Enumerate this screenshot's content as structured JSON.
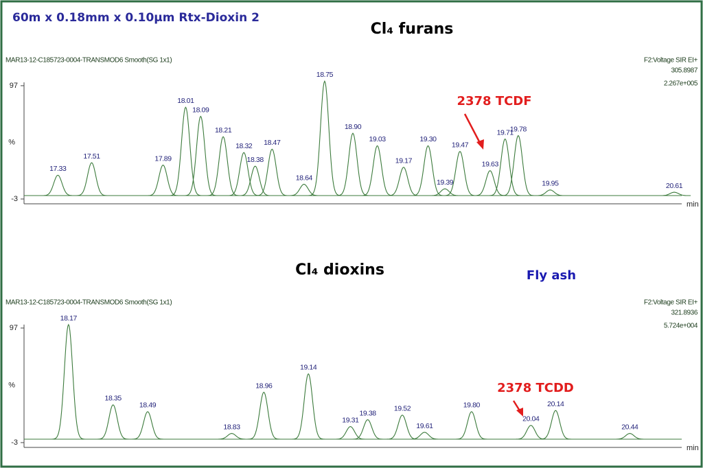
{
  "page_title": "60m x 0.18mm x 0.10µm Rtx-Dioxin 2",
  "chart_data": [
    {
      "type": "chromatogram",
      "title": "Cl₄ furans",
      "header_left": "MAR13-12-C185723-0004-TRANSMOD6 Smooth(SG 1x1)",
      "header_right": [
        "F2:Voltage SIR EI+",
        "305.8987",
        "2.267e+005"
      ],
      "ylabel": "%",
      "xlabel": "min",
      "x": [
        17.33,
        17.51,
        17.89,
        18.01,
        18.09,
        18.21,
        18.32,
        18.38,
        18.47,
        18.64,
        18.75,
        18.9,
        19.03,
        19.17,
        19.3,
        19.39,
        19.47,
        19.63,
        19.71,
        19.78,
        19.95,
        20.61
      ],
      "x_labels": [
        "17.33",
        "17.51",
        "17.89",
        "18.01",
        "18.09",
        "18.21",
        "18.32",
        "18.38",
        "18.47",
        "18.64",
        "18.75",
        "18.90",
        "19.03",
        "19.17",
        "19.30",
        "19.39",
        "19.47",
        "19.63",
        "19.71",
        "19.78",
        "19.95",
        "20.61"
      ],
      "values": [
        18,
        29,
        27,
        78,
        70,
        52,
        38,
        26,
        41,
        10,
        101,
        55,
        44,
        25,
        44,
        6,
        39,
        22,
        50,
        53,
        5,
        3
      ],
      "color": "#3b7a3b",
      "xlim": [
        17.15,
        20.65
      ],
      "ylim": [
        -3,
        103
      ],
      "yticks": [
        97,
        -3
      ],
      "annotations": [
        "2378 TCDF"
      ]
    },
    {
      "type": "chromatogram",
      "title": "Cl₄ dioxins",
      "header_left": "MAR13-12-C185723-0004-TRANSMOD6 Smooth(SG 1x1)",
      "header_right": [
        "F2:Voltage SIR EI+",
        "321.8936",
        "5.724e+004"
      ],
      "ylabel": "%",
      "xlabel": "min",
      "x": [
        18.17,
        18.35,
        18.49,
        18.83,
        18.96,
        19.14,
        19.31,
        19.38,
        19.52,
        19.61,
        19.8,
        20.04,
        20.14,
        20.44
      ],
      "x_labels": [
        "18.17",
        "18.35",
        "18.49",
        "18.83",
        "18.96",
        "19.14",
        "19.31",
        "19.38",
        "19.52",
        "19.61",
        "19.80",
        "20.04",
        "20.14",
        "20.44"
      ],
      "values": [
        100,
        30,
        24,
        5,
        41,
        57,
        11,
        17,
        21,
        6,
        24,
        12,
        25,
        5
      ],
      "color": "#3b7a3b",
      "xlim": [
        17.99,
        20.65
      ],
      "ylim": [
        -3,
        103
      ],
      "yticks": [
        97,
        -3
      ],
      "annotations": [
        "2378 TCDD",
        "Fly ash"
      ]
    }
  ]
}
